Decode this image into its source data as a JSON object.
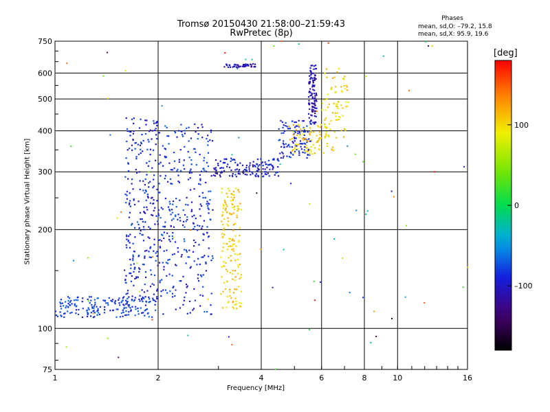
{
  "header": {
    "title_line1": "Tromsø 20150430 21:58:00–21:59:43",
    "title_line2": "RwPretec (8p)"
  },
  "phases_box": {
    "title": "Phases",
    "stat_o": "mean, sd,O: –79.2, 15.8",
    "stat_x": "mean, sd,X: 95.9, 19.6"
  },
  "colorbar": {
    "unit": "[deg]",
    "ticks": [
      "100",
      "0",
      "–100"
    ],
    "tick_values": [
      100,
      0,
      -100
    ],
    "range": [
      -180,
      180
    ],
    "colormap": "rainbow"
  },
  "chart_data": {
    "type": "scatter",
    "title": "Tromsø 20150430 21:58:00–21:59:43",
    "subtitle": "RwPretec (8p)",
    "xlabel": "Frequency [MHz]",
    "ylabel": "Stationary phase Virtual Height [km]",
    "x_scale": "log",
    "y_scale": "log",
    "xlim": [
      1,
      16
    ],
    "ylim": [
      75,
      750
    ],
    "x_ticks": [
      1,
      2,
      4,
      6,
      8,
      10,
      16
    ],
    "x_tick_labels": [
      "1",
      "2",
      "4",
      "6",
      "8",
      "10",
      "16"
    ],
    "y_ticks": [
      75,
      100,
      200,
      300,
      400,
      500,
      600,
      750
    ],
    "y_tick_labels": [
      "75",
      "100",
      "200",
      "300",
      "400",
      "500",
      "600",
      "750"
    ],
    "grid": true,
    "color_by": "phase [deg]",
    "groups": [
      {
        "x_range": [
          1.0,
          2.0
        ],
        "y_range": [
          108,
          125
        ],
        "phase": -80,
        "count": 180
      },
      {
        "x_range": [
          1.6,
          2.0
        ],
        "y_range": [
          115,
          440
        ],
        "phase": -90,
        "count": 260
      },
      {
        "x_range": [
          2.0,
          2.9
        ],
        "y_range": [
          110,
          420
        ],
        "phase": -85,
        "count": 320
      },
      {
        "x_range": [
          3.05,
          3.5
        ],
        "y_range": [
          115,
          270
        ],
        "phase": 105,
        "count": 160
      },
      {
        "x_range": [
          2.9,
          4.5
        ],
        "y_range": [
          290,
          330
        ],
        "phase": -95,
        "count": 140
      },
      {
        "x_range": [
          4.5,
          5.6
        ],
        "y_range": [
          330,
          430
        ],
        "phase": -90,
        "count": 110
      },
      {
        "x_range": [
          5.5,
          5.8
        ],
        "y_range": [
          420,
          640
        ],
        "phase": -110,
        "count": 110
      },
      {
        "x_range": [
          4.8,
          6.5
        ],
        "y_range": [
          340,
          420
        ],
        "phase": 105,
        "count": 90
      },
      {
        "x_range": [
          6.0,
          7.2
        ],
        "y_range": [
          380,
          620
        ],
        "phase": 100,
        "count": 70
      },
      {
        "x_range": [
          3.1,
          3.9
        ],
        "y_range": [
          625,
          640
        ],
        "phase": -105,
        "count": 45
      }
    ]
  }
}
